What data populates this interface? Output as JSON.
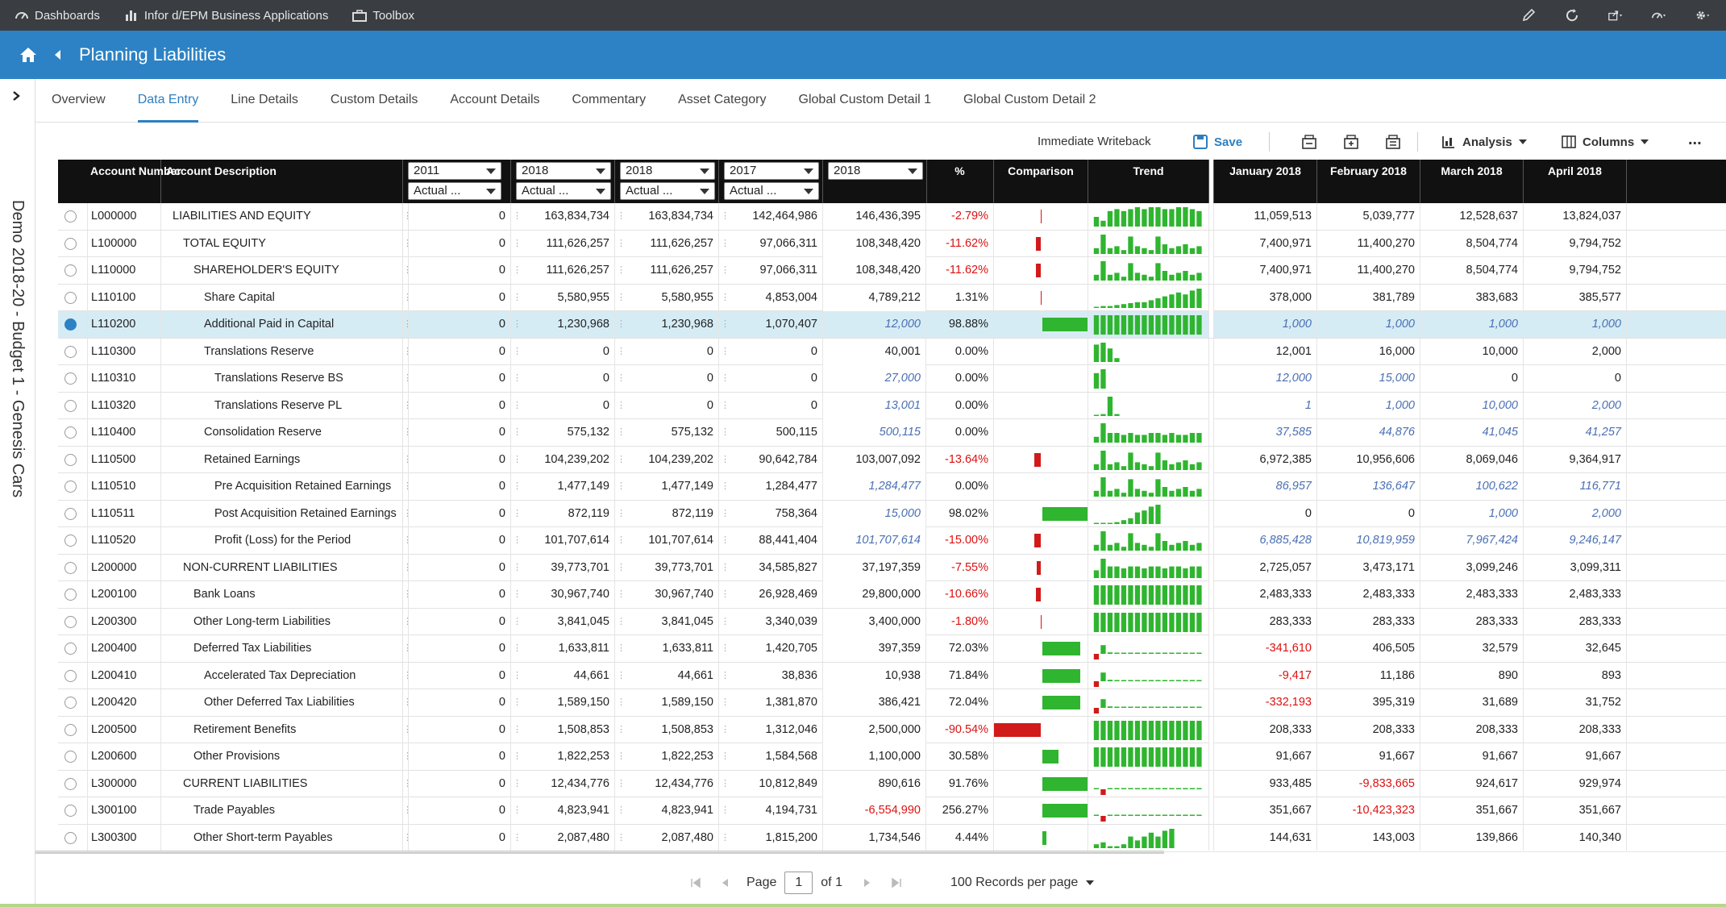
{
  "topbar": {
    "dashboards": "Dashboards",
    "apps": "Infor d/EPM Business Applications",
    "toolbox": "Toolbox"
  },
  "title": "Planning Liabilities",
  "sidebar_label": "Demo 2018-20 - Budget 1 - Genesis Cars",
  "tabs": [
    "Overview",
    "Data Entry",
    "Line Details",
    "Custom Details",
    "Account Details",
    "Commentary",
    "Asset Category",
    "Global Custom Detail 1",
    "Global Custom Detail 2"
  ],
  "toolbar": {
    "writeback": "Immediate Writeback",
    "save": "Save",
    "analysis": "Analysis",
    "columns": "Columns",
    "more": "..."
  },
  "headers": {
    "account_number": "Account Number",
    "account_description": "Account Description",
    "pct": "%",
    "comparison": "Comparison",
    "trend": "Trend",
    "months": [
      "January 2018",
      "February 2018",
      "March 2018",
      "April 2018"
    ]
  },
  "selectors": [
    {
      "year": "2011",
      "scenario": "Actual ..."
    },
    {
      "year": "2018",
      "scenario": "Actual ..."
    },
    {
      "year": "2018",
      "scenario": "Actual ..."
    },
    {
      "year": "2017",
      "scenario": "Actual ..."
    },
    {
      "year": "2018",
      "scenario": ""
    }
  ],
  "rows": [
    {
      "acct": "L000000",
      "desc": "LIABILITIES AND EQUITY",
      "lvl": 0,
      "v1": "0",
      "v2": "163,834,734",
      "v3": "163,834,734",
      "v4": "142,464,986",
      "v5": "146,436,395",
      "v5i": false,
      "pct": "-2.79%",
      "cmp": -0.02,
      "trend": [
        0.5,
        0.3,
        0.8,
        0.9,
        0.8,
        0.9,
        1,
        0.9,
        1,
        1,
        0.9,
        0.9,
        1,
        1,
        0.9,
        0.8
      ],
      "m": [
        "11,059,513",
        "5,039,777",
        "12,528,637",
        "13,824,037"
      ],
      "mi": [
        false,
        false,
        false,
        false
      ]
    },
    {
      "acct": "L100000",
      "desc": "TOTAL EQUITY",
      "lvl": 1,
      "v1": "0",
      "v2": "111,626,257",
      "v3": "111,626,257",
      "v4": "97,066,311",
      "v5": "108,348,420",
      "v5i": false,
      "pct": "-11.62%",
      "cmp": -0.1,
      "trend": [
        0.3,
        1,
        0.3,
        0.4,
        0.2,
        0.9,
        0.4,
        0.3,
        0.2,
        0.9,
        0.5,
        0.3,
        0.4,
        0.5,
        0.3,
        0.4
      ],
      "m": [
        "7,400,971",
        "11,400,270",
        "8,504,774",
        "9,794,752"
      ],
      "mi": [
        false,
        false,
        false,
        false
      ]
    },
    {
      "acct": "L110000",
      "desc": "SHAREHOLDER'S EQUITY",
      "lvl": 2,
      "v1": "0",
      "v2": "111,626,257",
      "v3": "111,626,257",
      "v4": "97,066,311",
      "v5": "108,348,420",
      "v5i": false,
      "pct": "-11.62%",
      "cmp": -0.1,
      "trend": [
        0.3,
        1,
        0.3,
        0.4,
        0.2,
        0.9,
        0.4,
        0.3,
        0.2,
        0.9,
        0.5,
        0.3,
        0.4,
        0.5,
        0.3,
        0.4
      ],
      "m": [
        "7,400,971",
        "11,400,270",
        "8,504,774",
        "9,794,752"
      ],
      "mi": [
        false,
        false,
        false,
        false
      ]
    },
    {
      "acct": "L110100",
      "desc": "Share Capital",
      "lvl": 3,
      "v1": "0",
      "v2": "5,580,955",
      "v3": "5,580,955",
      "v4": "4,853,004",
      "v5": "4,789,212",
      "v5i": false,
      "pct": "1.31%",
      "cmp": 0.02,
      "trend": [
        0.05,
        0.1,
        0.1,
        0.15,
        0.2,
        0.25,
        0.3,
        0.3,
        0.4,
        0.5,
        0.6,
        0.7,
        0.8,
        0.7,
        0.9,
        1
      ],
      "m": [
        "378,000",
        "381,789",
        "383,683",
        "385,577"
      ],
      "mi": [
        false,
        false,
        false,
        false
      ]
    },
    {
      "acct": "L110200",
      "desc": "Additional Paid in Capital",
      "lvl": 3,
      "v1": "0",
      "v2": "1,230,968",
      "v3": "1,230,968",
      "v4": "1,070,407",
      "v5": "12,000",
      "v5i": true,
      "pct": "98.88%",
      "cmp": 0.99,
      "trend": [
        1,
        1,
        1,
        1,
        1,
        1,
        1,
        1,
        1,
        1,
        1,
        1,
        1,
        1,
        1,
        1
      ],
      "m": [
        "1,000",
        "1,000",
        "1,000",
        "1,000"
      ],
      "mi": [
        true,
        true,
        true,
        true
      ],
      "hl": true
    },
    {
      "acct": "L110300",
      "desc": "Translations Reserve",
      "lvl": 3,
      "v1": "0",
      "v2": "0",
      "v3": "0",
      "v4": "0",
      "v5": "40,001",
      "v5i": false,
      "pct": "0.00%",
      "cmp": 0,
      "trend": [
        0.9,
        1,
        0.7,
        0.2
      ],
      "m": [
        "12,001",
        "16,000",
        "10,000",
        "2,000"
      ],
      "mi": [
        false,
        false,
        false,
        false
      ]
    },
    {
      "acct": "L110310",
      "desc": "Translations Reserve BS",
      "lvl": 4,
      "v1": "0",
      "v2": "0",
      "v3": "0",
      "v4": "0",
      "v5": "27,000",
      "v5i": true,
      "pct": "0.00%",
      "cmp": 0,
      "trend": [
        0.8,
        1
      ],
      "m": [
        "12,000",
        "15,000",
        "0",
        "0"
      ],
      "mi": [
        true,
        true,
        false,
        false
      ]
    },
    {
      "acct": "L110320",
      "desc": "Translations Reserve PL",
      "lvl": 4,
      "v1": "0",
      "v2": "0",
      "v3": "0",
      "v4": "0",
      "v5": "13,001",
      "v5i": true,
      "pct": "0.00%",
      "cmp": 0,
      "trend": [
        0.05,
        0.1,
        1,
        0.1
      ],
      "m": [
        "1",
        "1,000",
        "10,000",
        "2,000"
      ],
      "mi": [
        true,
        true,
        true,
        true
      ]
    },
    {
      "acct": "L110400",
      "desc": "Consolidation Reserve",
      "lvl": 3,
      "v1": "0",
      "v2": "575,132",
      "v3": "575,132",
      "v4": "500,115",
      "v5": "500,115",
      "v5i": true,
      "pct": "0.00%",
      "cmp": 0,
      "trend": [
        0.3,
        1,
        0.5,
        0.5,
        0.4,
        0.5,
        0.4,
        0.4,
        0.5,
        0.5,
        0.4,
        0.5,
        0.4,
        0.4,
        0.5,
        0.5
      ],
      "m": [
        "37,585",
        "44,876",
        "41,045",
        "41,257"
      ],
      "mi": [
        true,
        true,
        true,
        true
      ]
    },
    {
      "acct": "L110500",
      "desc": "Retained Earnings",
      "lvl": 3,
      "v1": "0",
      "v2": "104,239,202",
      "v3": "104,239,202",
      "v4": "90,642,784",
      "v5": "103,007,092",
      "v5i": false,
      "pct": "-13.64%",
      "cmp": -0.12,
      "trend": [
        0.3,
        1,
        0.3,
        0.4,
        0.2,
        0.9,
        0.4,
        0.3,
        0.2,
        0.9,
        0.5,
        0.3,
        0.4,
        0.5,
        0.3,
        0.4
      ],
      "m": [
        "6,972,385",
        "10,956,606",
        "8,069,046",
        "9,364,917"
      ],
      "mi": [
        false,
        false,
        false,
        false
      ]
    },
    {
      "acct": "L110510",
      "desc": "Pre Acquisition Retained Earnings",
      "lvl": 4,
      "v1": "0",
      "v2": "1,477,149",
      "v3": "1,477,149",
      "v4": "1,284,477",
      "v5": "1,284,477",
      "v5i": true,
      "pct": "0.00%",
      "cmp": 0,
      "trend": [
        0.3,
        1,
        0.3,
        0.4,
        0.2,
        0.9,
        0.4,
        0.3,
        0.2,
        0.9,
        0.5,
        0.3,
        0.4,
        0.5,
        0.3,
        0.4
      ],
      "m": [
        "86,957",
        "136,647",
        "100,622",
        "116,771"
      ],
      "mi": [
        true,
        true,
        true,
        true
      ]
    },
    {
      "acct": "L110511",
      "desc": "Post Acquisition Retained Earnings",
      "lvl": 4,
      "v1": "0",
      "v2": "872,119",
      "v3": "872,119",
      "v4": "758,364",
      "v5": "15,000",
      "v5i": true,
      "pct": "98.02%",
      "cmp": 0.98,
      "trend": [
        0,
        0,
        0,
        0.1,
        0.2,
        0.3,
        0.6,
        0.7,
        0.9,
        1
      ],
      "m": [
        "0",
        "0",
        "1,000",
        "2,000"
      ],
      "mi": [
        false,
        false,
        true,
        true
      ]
    },
    {
      "acct": "L110520",
      "desc": "Profit (Loss) for the Period",
      "lvl": 4,
      "v1": "0",
      "v2": "101,707,614",
      "v3": "101,707,614",
      "v4": "88,441,404",
      "v5": "101,707,614",
      "v5i": true,
      "pct": "-15.00%",
      "cmp": -0.13,
      "trend": [
        0.3,
        1,
        0.3,
        0.4,
        0.2,
        0.9,
        0.4,
        0.3,
        0.2,
        0.9,
        0.5,
        0.3,
        0.4,
        0.5,
        0.3,
        0.4
      ],
      "m": [
        "6,885,428",
        "10,819,959",
        "7,967,424",
        "9,246,147"
      ],
      "mi": [
        true,
        true,
        true,
        true
      ]
    },
    {
      "acct": "L200000",
      "desc": "NON-CURRENT LIABILITIES",
      "lvl": 1,
      "v1": "0",
      "v2": "39,773,701",
      "v3": "39,773,701",
      "v4": "34,585,827",
      "v5": "37,197,359",
      "v5i": false,
      "pct": "-7.55%",
      "cmp": -0.07,
      "trend": [
        0.4,
        1,
        0.6,
        0.6,
        0.5,
        0.6,
        0.6,
        0.5,
        0.6,
        0.6,
        0.5,
        0.6,
        0.6,
        0.5,
        0.6,
        0.6
      ],
      "m": [
        "2,725,057",
        "3,473,171",
        "3,099,246",
        "3,099,311"
      ],
      "mi": [
        false,
        false,
        false,
        false
      ]
    },
    {
      "acct": "L200100",
      "desc": "Bank Loans",
      "lvl": 2,
      "v1": "0",
      "v2": "30,967,740",
      "v3": "30,967,740",
      "v4": "26,928,469",
      "v5": "29,800,000",
      "v5i": false,
      "pct": "-10.66%",
      "cmp": -0.09,
      "trend": [
        1,
        1,
        1,
        1,
        1,
        1,
        1,
        1,
        1,
        1,
        1,
        1,
        1,
        1,
        1,
        1
      ],
      "m": [
        "2,483,333",
        "2,483,333",
        "2,483,333",
        "2,483,333"
      ],
      "mi": [
        false,
        false,
        false,
        false
      ]
    },
    {
      "acct": "L200300",
      "desc": "Other Long-term Liabilities",
      "lvl": 2,
      "v1": "0",
      "v2": "3,841,045",
      "v3": "3,841,045",
      "v4": "3,340,039",
      "v5": "3,400,000",
      "v5i": false,
      "pct": "-1.80%",
      "cmp": -0.02,
      "trend": [
        1,
        1,
        1,
        1,
        1,
        1,
        1,
        1,
        1,
        1,
        1,
        1,
        1,
        1,
        1,
        1
      ],
      "m": [
        "283,333",
        "283,333",
        "283,333",
        "283,333"
      ],
      "mi": [
        false,
        false,
        false,
        false
      ]
    },
    {
      "acct": "L200400",
      "desc": "Deferred Tax Liabilities",
      "lvl": 2,
      "v1": "0",
      "v2": "1,633,811",
      "v3": "1,633,811",
      "v4": "1,420,705",
      "v5": "397,359",
      "v5i": false,
      "pct": "72.03%",
      "cmp": 0.72,
      "trend": [
        -0.4,
        0.6,
        0.1,
        0.05,
        0.05,
        0.05,
        0.05,
        0.05,
        0.05,
        0.05,
        0.05,
        0.05,
        0.05,
        0.05,
        0.05,
        0.05
      ],
      "m": [
        "-341,610",
        "406,505",
        "32,579",
        "32,645"
      ],
      "mi": [
        false,
        false,
        false,
        false
      ]
    },
    {
      "acct": "L200410",
      "desc": "Accelerated Tax Depreciation",
      "lvl": 3,
      "v1": "0",
      "v2": "44,661",
      "v3": "44,661",
      "v4": "38,836",
      "v5": "10,938",
      "v5i": false,
      "pct": "71.84%",
      "cmp": 0.72,
      "trend": [
        -0.4,
        0.6,
        0.1,
        0.05,
        0.05,
        0.05,
        0.05,
        0.05,
        0.05,
        0.05,
        0.05,
        0.05,
        0.05,
        0.05,
        0.05,
        0.05
      ],
      "m": [
        "-9,417",
        "11,186",
        "890",
        "893"
      ],
      "mi": [
        false,
        false,
        false,
        false
      ]
    },
    {
      "acct": "L200420",
      "desc": "Other Deferred Tax Liabilities",
      "lvl": 3,
      "v1": "0",
      "v2": "1,589,150",
      "v3": "1,589,150",
      "v4": "1,381,870",
      "v5": "386,421",
      "v5i": false,
      "pct": "72.04%",
      "cmp": 0.72,
      "trend": [
        -0.4,
        0.6,
        0.1,
        0.05,
        0.05,
        0.05,
        0.05,
        0.05,
        0.05,
        0.05,
        0.05,
        0.05,
        0.05,
        0.05,
        0.05,
        0.05
      ],
      "m": [
        "-332,193",
        "395,319",
        "31,689",
        "31,752"
      ],
      "mi": [
        false,
        false,
        false,
        false
      ]
    },
    {
      "acct": "L200500",
      "desc": "Retirement Benefits",
      "lvl": 2,
      "v1": "0",
      "v2": "1,508,853",
      "v3": "1,508,853",
      "v4": "1,312,046",
      "v5": "2,500,000",
      "v5i": false,
      "pct": "-90.54%",
      "cmp": -0.9,
      "trend": [
        1,
        1,
        1,
        1,
        1,
        1,
        1,
        1,
        1,
        1,
        1,
        1,
        1,
        1,
        1,
        1
      ],
      "m": [
        "208,333",
        "208,333",
        "208,333",
        "208,333"
      ],
      "mi": [
        false,
        false,
        false,
        false
      ]
    },
    {
      "acct": "L200600",
      "desc": "Other Provisions",
      "lvl": 2,
      "v1": "0",
      "v2": "1,822,253",
      "v3": "1,822,253",
      "v4": "1,584,568",
      "v5": "1,100,000",
      "v5i": false,
      "pct": "30.58%",
      "cmp": 0.3,
      "trend": [
        1,
        1,
        1,
        1,
        1,
        1,
        1,
        1,
        1,
        1,
        1,
        1,
        1,
        1,
        1,
        1
      ],
      "m": [
        "91,667",
        "91,667",
        "91,667",
        "91,667"
      ],
      "mi": [
        false,
        false,
        false,
        false
      ]
    },
    {
      "acct": "L300000",
      "desc": "CURRENT LIABILITIES",
      "lvl": 1,
      "v1": "0",
      "v2": "12,434,776",
      "v3": "12,434,776",
      "v4": "10,812,849",
      "v5": "890,616",
      "v5i": false,
      "pct": "91.76%",
      "cmp": 0.9,
      "trend": [
        0.05,
        -1,
        0.05,
        0.05,
        0.05,
        0.05,
        0.05,
        0.05,
        0.05,
        0.05,
        0.05,
        0.05,
        0.05,
        0.05,
        0.05,
        0.05
      ],
      "m": [
        "933,485",
        "-9,833,665",
        "924,617",
        "929,974"
      ],
      "mi": [
        false,
        false,
        false,
        false
      ]
    },
    {
      "acct": "L300100",
      "desc": "Trade Payables",
      "lvl": 2,
      "v1": "0",
      "v2": "4,823,941",
      "v3": "4,823,941",
      "v4": "4,194,731",
      "v5": "-6,554,990",
      "v5i": false,
      "pct": "256.27%",
      "cmp": 1,
      "trend": [
        0.05,
        -1,
        0.05,
        0.05,
        0.05,
        0.05,
        0.05,
        0.05,
        0.05,
        0.05,
        0.05,
        0.05,
        0.05,
        0.05,
        0.05,
        0.05
      ],
      "m": [
        "351,667",
        "-10,423,323",
        "351,667",
        "351,667"
      ],
      "mi": [
        false,
        false,
        false,
        false
      ]
    },
    {
      "acct": "L300300",
      "desc": "Other Short-term Payables",
      "lvl": 2,
      "v1": "0",
      "v2": "2,087,480",
      "v3": "2,087,480",
      "v4": "1,815,200",
      "v5": "1,734,546",
      "v5i": false,
      "pct": "4.44%",
      "cmp": 0.04,
      "trend": [
        0.2,
        0.3,
        0.1,
        0.1,
        0.2,
        0.6,
        0.4,
        0.6,
        0.8,
        0.6,
        0.9,
        1
      ],
      "m": [
        "144,631",
        "143,003",
        "139,866",
        "140,340"
      ],
      "mi": [
        false,
        false,
        false,
        false
      ]
    }
  ],
  "pager": {
    "page_label": "Page",
    "page": "1",
    "of": "of 1",
    "per_page": "100 Records per page"
  },
  "colors": {
    "accent": "#2c82c4",
    "positive": "#2fb52f",
    "negative": "#d11a1a"
  }
}
